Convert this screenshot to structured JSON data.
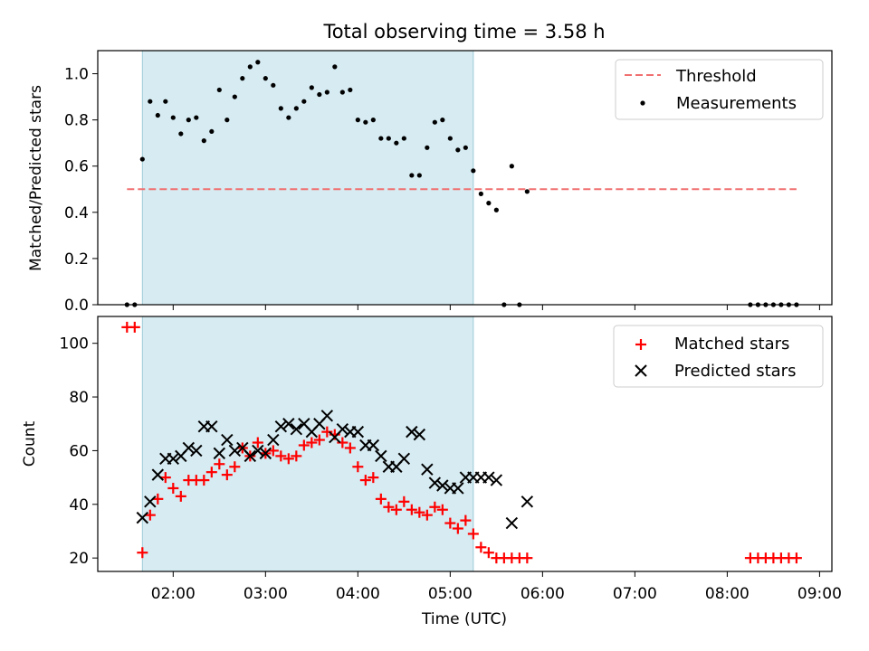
{
  "chart_data": [
    {
      "type": "scatter",
      "title": "Total observing time = 3.58 h",
      "ylabel": "Matched/Predicted stars",
      "xlabel": "",
      "xlim": [
        "01:11",
        "09:08"
      ],
      "ylim": [
        0,
        1.1
      ],
      "yticks": [
        "0.0",
        "0.2",
        "0.4",
        "0.6",
        "0.8",
        "1.0"
      ],
      "shaded_interval": [
        "01:40",
        "05:15"
      ],
      "threshold": {
        "name": "Threshold",
        "value": 0.5,
        "from": "01:30",
        "to": "08:45",
        "color": "#f07070"
      },
      "legend_position": "top-right",
      "series": [
        {
          "name": "Measurements",
          "color": "#000000",
          "x": [
            "01:30",
            "01:35",
            "01:40",
            "01:45",
            "01:50",
            "01:55",
            "02:00",
            "02:05",
            "02:10",
            "02:15",
            "02:20",
            "02:25",
            "02:30",
            "02:35",
            "02:40",
            "02:45",
            "02:50",
            "02:55",
            "03:00",
            "03:05",
            "03:10",
            "03:15",
            "03:20",
            "03:25",
            "03:30",
            "03:35",
            "03:40",
            "03:45",
            "03:50",
            "03:55",
            "04:00",
            "04:05",
            "04:10",
            "04:15",
            "04:20",
            "04:25",
            "04:30",
            "04:35",
            "04:40",
            "04:45",
            "04:50",
            "04:55",
            "05:00",
            "05:05",
            "05:10",
            "05:15",
            "05:20",
            "05:25",
            "05:30",
            "05:35",
            "05:40",
            "05:45",
            "05:50",
            "08:15",
            "08:20",
            "08:25",
            "08:30",
            "08:35",
            "08:40",
            "08:45"
          ],
          "y": [
            0,
            0,
            0.63,
            0.88,
            0.82,
            0.88,
            0.81,
            0.74,
            0.8,
            0.81,
            0.71,
            0.75,
            0.93,
            0.8,
            0.9,
            0.98,
            1.03,
            1.05,
            0.98,
            0.95,
            0.85,
            0.81,
            0.85,
            0.88,
            0.94,
            0.91,
            0.92,
            1.03,
            0.92,
            0.93,
            0.8,
            0.79,
            0.8,
            0.72,
            0.72,
            0.7,
            0.72,
            0.56,
            0.56,
            0.68,
            0.79,
            0.8,
            0.72,
            0.67,
            0.68,
            0.58,
            0.48,
            0.44,
            0.41,
            0,
            0.6,
            0,
            0.49,
            0,
            0,
            0,
            0,
            0,
            0,
            0
          ]
        }
      ]
    },
    {
      "type": "scatter",
      "title": "",
      "xlabel": "Time (UTC)",
      "ylabel": "Count",
      "xlim": [
        "01:11",
        "09:08"
      ],
      "ylim": [
        15,
        110
      ],
      "xticks": [
        "02:00",
        "03:00",
        "04:00",
        "05:00",
        "06:00",
        "07:00",
        "08:00",
        "09:00"
      ],
      "yticks": [
        "20",
        "40",
        "60",
        "80",
        "100"
      ],
      "shaded_interval": [
        "01:40",
        "05:15"
      ],
      "legend_position": "top-right",
      "series": [
        {
          "name": "Matched stars",
          "marker": "+",
          "color": "#ff0000",
          "x": [
            "01:30",
            "01:35",
            "01:40",
            "01:45",
            "01:50",
            "01:55",
            "02:00",
            "02:05",
            "02:10",
            "02:15",
            "02:20",
            "02:25",
            "02:30",
            "02:35",
            "02:40",
            "02:45",
            "02:50",
            "02:55",
            "03:00",
            "03:05",
            "03:10",
            "03:15",
            "03:20",
            "03:25",
            "03:30",
            "03:35",
            "03:40",
            "03:45",
            "03:50",
            "03:55",
            "04:00",
            "04:05",
            "04:10",
            "04:15",
            "04:20",
            "04:25",
            "04:30",
            "04:35",
            "04:40",
            "04:45",
            "04:50",
            "04:55",
            "05:00",
            "05:05",
            "05:10",
            "05:15",
            "05:20",
            "05:25",
            "05:30",
            "05:35",
            "05:40",
            "05:45",
            "05:50",
            "08:15",
            "08:20",
            "08:25",
            "08:30",
            "08:35",
            "08:40",
            "08:45"
          ],
          "y": [
            106,
            106,
            22,
            36,
            42,
            50,
            46,
            43,
            49,
            49,
            49,
            52,
            55,
            51,
            54,
            61,
            58,
            63,
            59,
            60,
            58,
            57,
            58,
            62,
            63,
            64,
            67,
            66,
            63,
            61,
            54,
            49,
            50,
            42,
            39,
            38,
            41,
            38,
            37,
            36,
            39,
            38,
            33,
            31,
            34,
            29,
            24,
            22,
            20,
            20,
            20,
            20,
            20,
            20,
            20,
            20,
            20,
            20,
            20,
            20
          ]
        },
        {
          "name": "Predicted stars",
          "marker": "x",
          "color": "#000000",
          "x": [
            "01:40",
            "01:45",
            "01:50",
            "01:55",
            "02:00",
            "02:05",
            "02:10",
            "02:15",
            "02:20",
            "02:25",
            "02:30",
            "02:35",
            "02:40",
            "02:45",
            "02:50",
            "02:55",
            "03:00",
            "03:05",
            "03:10",
            "03:15",
            "03:20",
            "03:25",
            "03:30",
            "03:35",
            "03:40",
            "03:45",
            "03:50",
            "03:55",
            "04:00",
            "04:05",
            "04:10",
            "04:15",
            "04:20",
            "04:25",
            "04:30",
            "04:35",
            "04:40",
            "04:45",
            "04:50",
            "04:55",
            "05:00",
            "05:05",
            "05:10",
            "05:15",
            "05:20",
            "05:25",
            "05:30",
            "05:40",
            "05:50"
          ],
          "y": [
            35,
            41,
            51,
            57,
            57,
            58,
            61,
            60,
            69,
            69,
            59,
            64,
            60,
            61,
            58,
            60,
            59,
            64,
            69,
            70,
            68,
            70,
            67,
            70,
            73,
            65,
            68,
            67,
            67,
            62,
            62,
            58,
            54,
            54,
            57,
            67,
            66,
            53,
            48,
            47,
            46,
            46,
            50,
            50,
            50,
            50,
            49,
            33,
            41
          ]
        }
      ]
    }
  ]
}
